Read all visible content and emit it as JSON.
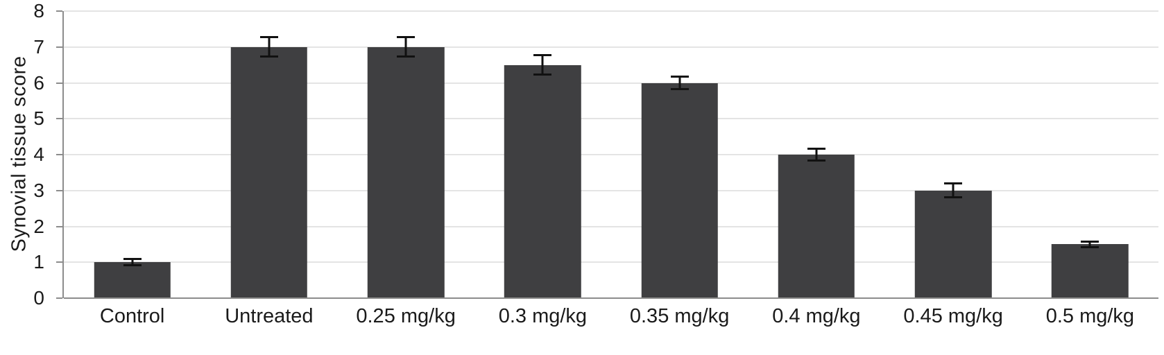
{
  "chart_data": {
    "type": "bar",
    "title": "",
    "xlabel": "",
    "ylabel": "Synovial tissue score",
    "ylim": [
      0,
      8
    ],
    "ytick_step": 1,
    "grid": true,
    "legend": "none",
    "categories": [
      "Control",
      "Untreated",
      "0.25 mg/kg",
      "0.3 mg/kg",
      "0.35 mg/kg",
      "0.4 mg/kg",
      "0.45 mg/kg",
      "0.5 mg/kg"
    ],
    "values": [
      1,
      7,
      7,
      6.5,
      6,
      4,
      3,
      1.5
    ],
    "errors": [
      0.12,
      0.3,
      0.3,
      0.3,
      0.2,
      0.2,
      0.22,
      0.1
    ],
    "bar_color": "#3f3f41",
    "error_color": "#111111",
    "grid_color": "#c9c9c9",
    "axis_color": "#8c8c8c"
  }
}
